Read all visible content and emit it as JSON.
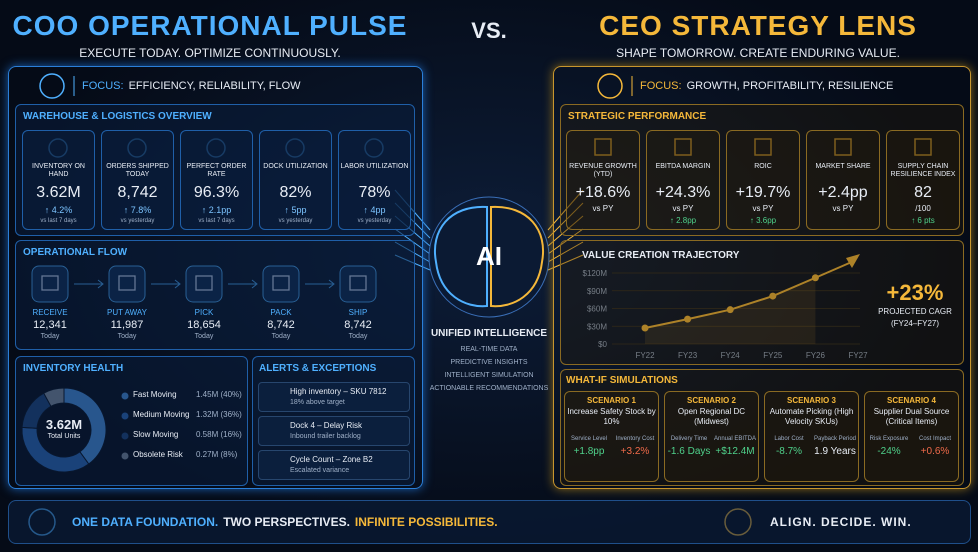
{
  "header": {
    "left_title": "COO OPERATIONAL PULSE",
    "left_subtitle": "EXECUTE TODAY. OPTIMIZE CONTINUOUSLY.",
    "vs": "VS.",
    "right_title": "CEO STRATEGY LENS",
    "right_subtitle": "SHAPE TOMORROW. CREATE ENDURING VALUE."
  },
  "coo": {
    "focus_label": "FOCUS:",
    "focus": "EFFICIENCY, RELIABILITY, FLOW",
    "warehouse": {
      "title": "WAREHOUSE & LOGISTICS OVERVIEW",
      "kpis": [
        {
          "label": "INVENTORY ON HAND",
          "value": "3.62M",
          "change": "↑ 4.2%",
          "note": "vs last 7 days"
        },
        {
          "label": "ORDERS SHIPPED TODAY",
          "value": "8,742",
          "change": "↑ 7.8%",
          "note": "vs yesterday"
        },
        {
          "label": "PERFECT ORDER RATE",
          "value": "96.3%",
          "change": "↑ 2.1pp",
          "note": "vs last 7 days"
        },
        {
          "label": "DOCK UTILIZATION",
          "value": "82%",
          "change": "↑ 5pp",
          "note": "vs yesterday"
        },
        {
          "label": "LABOR UTILIZATION",
          "value": "78%",
          "change": "↑ 4pp",
          "note": "vs yesterday"
        }
      ]
    },
    "flow": {
      "title": "OPERATIONAL FLOW",
      "steps": [
        {
          "label": "RECEIVE",
          "value": "12,341",
          "note": "Today"
        },
        {
          "label": "PUT AWAY",
          "value": "11,987",
          "note": "Today"
        },
        {
          "label": "PICK",
          "value": "18,654",
          "note": "Today"
        },
        {
          "label": "PACK",
          "value": "8,742",
          "note": "Today"
        },
        {
          "label": "SHIP",
          "value": "8,742",
          "note": "Today"
        }
      ]
    },
    "inventory": {
      "title": "INVENTORY HEALTH",
      "center_value": "3.62M",
      "center_label": "Total Units",
      "segments": [
        {
          "name": "Fast Moving",
          "value": 40,
          "label": "1.45M (40%)",
          "color": "#4f9cf0"
        },
        {
          "name": "Medium Moving",
          "value": 36,
          "label": "1.32M (36%)",
          "color": "#2f6fc4"
        },
        {
          "name": "Slow Moving",
          "value": 16,
          "label": "0.58M (16%)",
          "color": "#1f4a86"
        },
        {
          "name": "Obsolete Risk",
          "value": 8,
          "label": "0.27M (8%)",
          "color": "#8a97a8"
        }
      ]
    },
    "alerts": {
      "title": "ALERTS & EXCEPTIONS",
      "items": [
        {
          "title": "High inventory – SKU 7812",
          "detail": "18% above target",
          "color": "#f0503c"
        },
        {
          "title": "Dock 4 – Delay Risk",
          "detail": "Inbound trailer backlog",
          "color": "#f0503c"
        },
        {
          "title": "Cycle Count – Zone B2",
          "detail": "Escalated variance",
          "color": "#4f9cf0"
        }
      ]
    }
  },
  "center": {
    "ai": "AI",
    "title": "UNIFIED INTELLIGENCE",
    "items": [
      "REAL-TIME DATA",
      "PREDICTIVE INSIGHTS",
      "INTELLIGENT SIMULATION",
      "ACTIONABLE RECOMMENDATIONS"
    ]
  },
  "ceo": {
    "focus_label": "FOCUS:",
    "focus": "GROWTH, PROFITABILITY, RESILIENCE",
    "strategic": {
      "title": "STRATEGIC PERFORMANCE",
      "kpis": [
        {
          "label": "REVENUE GROWTH (YTD)",
          "value": "+18.6%",
          "note": "vs PY"
        },
        {
          "label": "EBITDA MARGIN",
          "value": "+24.3%",
          "note": "vs PY",
          "change": "↑ 2.8pp"
        },
        {
          "label": "ROIC",
          "value": "+19.7%",
          "note": "vs PY",
          "change": "↑ 3.6pp"
        },
        {
          "label": "MARKET SHARE",
          "value": "+2.4pp",
          "note": "vs PY"
        },
        {
          "label": "SUPPLY CHAIN RESILIENCE INDEX",
          "value": "82",
          "note": "/100",
          "change": "↑ 6 pts"
        }
      ]
    },
    "trajectory": {
      "type": "line",
      "title": "VALUE CREATION TRAJECTORY",
      "x": [
        "FY22",
        "FY23",
        "FY24",
        "FY25",
        "FY26",
        "FY27"
      ],
      "values": [
        27,
        42,
        58,
        81,
        112,
        null
      ],
      "color": "#f5b83a",
      "ylim": [
        0,
        120
      ],
      "yticks": [
        {
          "value": 0,
          "label": "$0"
        },
        {
          "value": 30,
          "label": "$30M"
        },
        {
          "value": 60,
          "label": "$60M"
        },
        {
          "value": 90,
          "label": "$90M"
        },
        {
          "value": 120,
          "label": "$120M"
        }
      ]
    },
    "cagr": {
      "value": "+23%",
      "label": "PROJECTED CAGR",
      "period": "(FY24–FY27)"
    },
    "simulations": {
      "title": "WHAT-IF SIMULATIONS",
      "items": [
        {
          "name": "SCENARIO 1",
          "desc": "Increase Safety Stock by 10%",
          "metrics": [
            {
              "label": "Service Level",
              "value": "+1.8pp",
              "color": "#4fd18b"
            },
            {
              "label": "Inventory Cost",
              "value": "+3.2%",
              "color": "#f06a4a"
            }
          ]
        },
        {
          "name": "SCENARIO 2",
          "desc": "Open Regional DC (Midwest)",
          "metrics": [
            {
              "label": "Delivery Time",
              "value": "-1.6 Days",
              "color": "#4fd18b"
            },
            {
              "label": "Annual EBITDA",
              "value": "+$12.4M",
              "color": "#4fd18b"
            }
          ]
        },
        {
          "name": "SCENARIO 3",
          "desc": "Automate Picking (High Velocity SKUs)",
          "metrics": [
            {
              "label": "Labor Cost",
              "value": "-8.7%",
              "color": "#4fd18b"
            },
            {
              "label": "Payback Period",
              "value": "1.9 Years",
              "color": "#e8edf5"
            }
          ]
        },
        {
          "name": "SCENARIO 4",
          "desc": "Supplier Dual Source (Critical Items)",
          "metrics": [
            {
              "label": "Risk Exposure",
              "value": "-24%",
              "color": "#4fd18b"
            },
            {
              "label": "Cost Impact",
              "value": "+0.6%",
              "color": "#f06a4a"
            }
          ]
        }
      ]
    }
  },
  "footer": {
    "parts": [
      {
        "text": "ONE DATA FOUNDATION.",
        "color": "#4fb0ff"
      },
      {
        "text": "TWO PERSPECTIVES.",
        "color": "#e8edf5"
      },
      {
        "text": "INFINITE POSSIBILITIES.",
        "color": "#f5b83a"
      }
    ],
    "right": "ALIGN. DECIDE. WIN."
  }
}
